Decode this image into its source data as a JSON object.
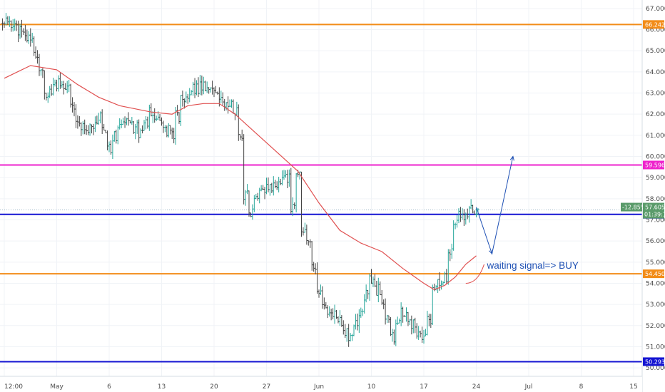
{
  "chart_data": {
    "type": "candlestick",
    "title": "",
    "y_axis": {
      "min": 49.6,
      "max": 67.4,
      "position": "right",
      "ticks": [
        "50.000",
        "51.000",
        "52.000",
        "53.000",
        "54.000",
        "55.000",
        "56.000",
        "57.000",
        "58.000",
        "59.000",
        "60.000",
        "61.000",
        "62.000",
        "63.000",
        "64.000",
        "65.000",
        "66.000",
        "67.000"
      ]
    },
    "x_axis": {
      "ticks": [
        {
          "label": "12:00",
          "i": 0
        },
        {
          "label": "May",
          "i": 10
        },
        {
          "label": "6",
          "i": 20
        },
        {
          "label": "13",
          "i": 30
        },
        {
          "label": "20",
          "i": 40
        },
        {
          "label": "27",
          "i": 50
        },
        {
          "label": "Jun",
          "i": 60
        },
        {
          "label": "10",
          "i": 70
        },
        {
          "label": "17",
          "i": 80
        },
        {
          "label": "24",
          "i": 90
        },
        {
          "label": "Jul",
          "i": 100
        },
        {
          "label": "8",
          "i": 110
        },
        {
          "label": "15",
          "i": 120
        }
      ],
      "index_max": 128
    },
    "price_points": [
      [
        0,
        66.3
      ],
      [
        3,
        66.0
      ],
      [
        5,
        65.5
      ],
      [
        7,
        64.2
      ],
      [
        8,
        63.0
      ],
      [
        10,
        63.4
      ],
      [
        12,
        63.2
      ],
      [
        14,
        61.5
      ],
      [
        16,
        61.3
      ],
      [
        18,
        61.8
      ],
      [
        20,
        60.4
      ],
      [
        22,
        61.6
      ],
      [
        24,
        61.7
      ],
      [
        26,
        61.0
      ],
      [
        28,
        62.1
      ],
      [
        30,
        61.5
      ],
      [
        32,
        61.0
      ],
      [
        34,
        62.8
      ],
      [
        36,
        63.2
      ],
      [
        38,
        63.3
      ],
      [
        40,
        63.0
      ],
      [
        42,
        62.6
      ],
      [
        44,
        62.2
      ],
      [
        45,
        61.0
      ],
      [
        46,
        58.1
      ],
      [
        47,
        57.4
      ],
      [
        49,
        58.3
      ],
      [
        52,
        58.8
      ],
      [
        54,
        58.9
      ],
      [
        55,
        57.5
      ],
      [
        56,
        59.1
      ],
      [
        57,
        56.6
      ],
      [
        58,
        55.8
      ],
      [
        59,
        54.7
      ],
      [
        61,
        52.8
      ],
      [
        63,
        52.5
      ],
      [
        66,
        51.4
      ],
      [
        68,
        52.6
      ],
      [
        70,
        54.2
      ],
      [
        72,
        53.2
      ],
      [
        74,
        51.5
      ],
      [
        76,
        52.7
      ],
      [
        78,
        52.0
      ],
      [
        80,
        51.5
      ],
      [
        81,
        52.3
      ],
      [
        82,
        53.7
      ],
      [
        84,
        54.2
      ],
      [
        85,
        55.6
      ],
      [
        86,
        56.8
      ],
      [
        87,
        57.3
      ],
      [
        88,
        57.2
      ],
      [
        89,
        57.6
      ],
      [
        90,
        57.4
      ]
    ],
    "ma_line": [
      [
        0,
        63.7
      ],
      [
        5,
        64.3
      ],
      [
        10,
        64.1
      ],
      [
        14,
        63.4
      ],
      [
        18,
        62.8
      ],
      [
        22,
        62.4
      ],
      [
        28,
        62.1
      ],
      [
        32,
        62.0
      ],
      [
        35,
        62.4
      ],
      [
        38,
        62.5
      ],
      [
        41,
        62.5
      ],
      [
        44,
        62.0
      ],
      [
        48,
        61.1
      ],
      [
        52,
        60.2
      ],
      [
        56,
        59.3
      ],
      [
        60,
        57.8
      ],
      [
        64,
        56.5
      ],
      [
        68,
        55.9
      ],
      [
        72,
        55.5
      ],
      [
        76,
        54.7
      ],
      [
        80,
        54.0
      ],
      [
        82,
        53.7
      ],
      [
        84,
        53.9
      ],
      [
        86,
        54.3
      ],
      [
        88,
        54.9
      ],
      [
        90,
        55.3
      ]
    ],
    "horizontal_levels": [
      {
        "value": 66.242,
        "label": "66.242",
        "color": "#f28c18"
      },
      {
        "value": 59.596,
        "label": "59.596",
        "color": "#ee22cc"
      },
      {
        "value": 57.262,
        "label": "57.262",
        "color": "#1414d2"
      },
      {
        "value": 54.45,
        "label": "54.450",
        "color": "#f28c18"
      },
      {
        "value": 50.293,
        "label": "50.293",
        "color": "#1414d2"
      }
    ],
    "current_price": {
      "value": 57.605,
      "change_label": "-12.85%",
      "price_label": "57.605",
      "countdown_label": "01:39:11",
      "color": "#5a9b6a"
    },
    "projection_path": [
      [
        90,
        57.6
      ],
      [
        93,
        55.4
      ],
      [
        97,
        60.0
      ]
    ],
    "annotation": {
      "text": "waiting signal=> BUY",
      "color": "#1e50b4",
      "pointer_from": [
        91.5,
        54.9
      ],
      "pointer_to": [
        88,
        54.0
      ]
    },
    "colors": {
      "up": "#26a69a",
      "down": "#444444",
      "ma": "#e05050",
      "projection": "#1e50b4"
    }
  }
}
